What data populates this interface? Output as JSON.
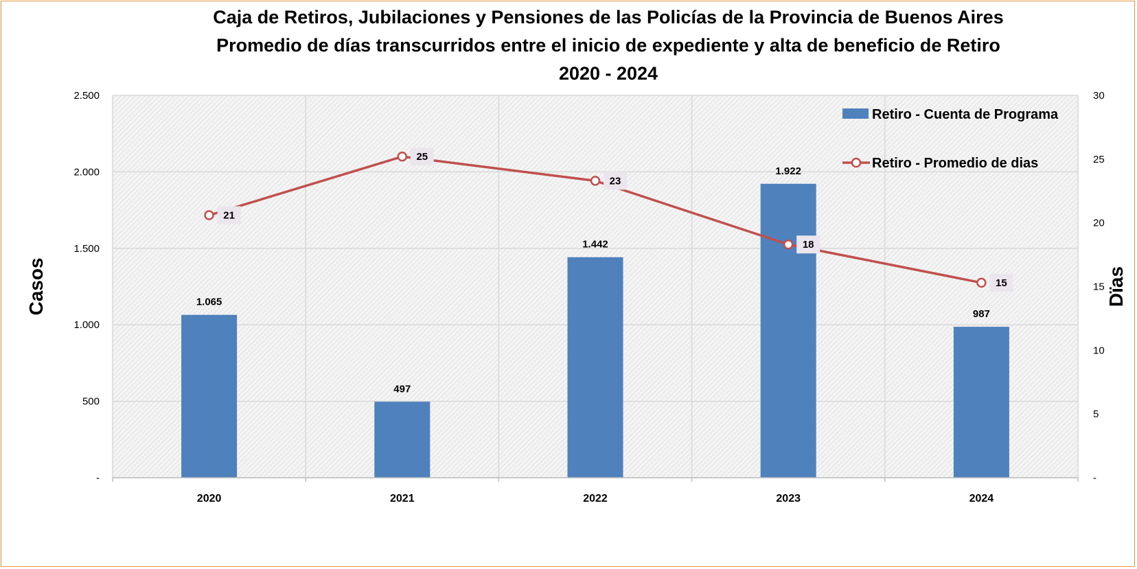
{
  "chart_data": {
    "type": "bar+line",
    "title_lines": [
      "Caja de Retiros, Jubilaciones y Pensiones de las Policías de la Provincia de Buenos Aires",
      "Promedio de días transcurridos entre el inicio de expediente y alta de beneficio de Retiro",
      "2020 - 2024"
    ],
    "categories": [
      "2020",
      "2021",
      "2022",
      "2023",
      "2024"
    ],
    "series": [
      {
        "name": "Retiro - Cuenta de Programa",
        "kind": "bar",
        "axis": "left",
        "color": "#4f81bd",
        "values": [
          1065,
          497,
          1442,
          1922,
          987
        ],
        "labels": [
          "1.065",
          "497",
          "1.442",
          "1.922",
          "987"
        ]
      },
      {
        "name": "Retiro - Promedio de dias",
        "kind": "line",
        "axis": "right",
        "color": "#c0504d",
        "values": [
          20.6,
          25.2,
          23.3,
          18.3,
          15.3
        ],
        "labels": [
          "21",
          "25",
          "23",
          "18",
          "15"
        ]
      }
    ],
    "y_left": {
      "label": "Casos",
      "range": [
        0,
        2500
      ],
      "ticks": [
        0,
        500,
        1000,
        1500,
        2000,
        2500
      ],
      "tick_labels": [
        "-",
        "500",
        "1.000",
        "1.500",
        "2.000",
        "2.500"
      ]
    },
    "y_right": {
      "label": "Dïas",
      "range": [
        0,
        30
      ],
      "ticks": [
        0,
        5,
        10,
        15,
        20,
        25,
        30
      ],
      "tick_labels": [
        "-",
        "5",
        "10",
        "15",
        "20",
        "25",
        "30"
      ]
    },
    "grid": true,
    "legend_position": "top-right",
    "plot_background": "hatched-gray",
    "frame_color": "#e8963c"
  }
}
